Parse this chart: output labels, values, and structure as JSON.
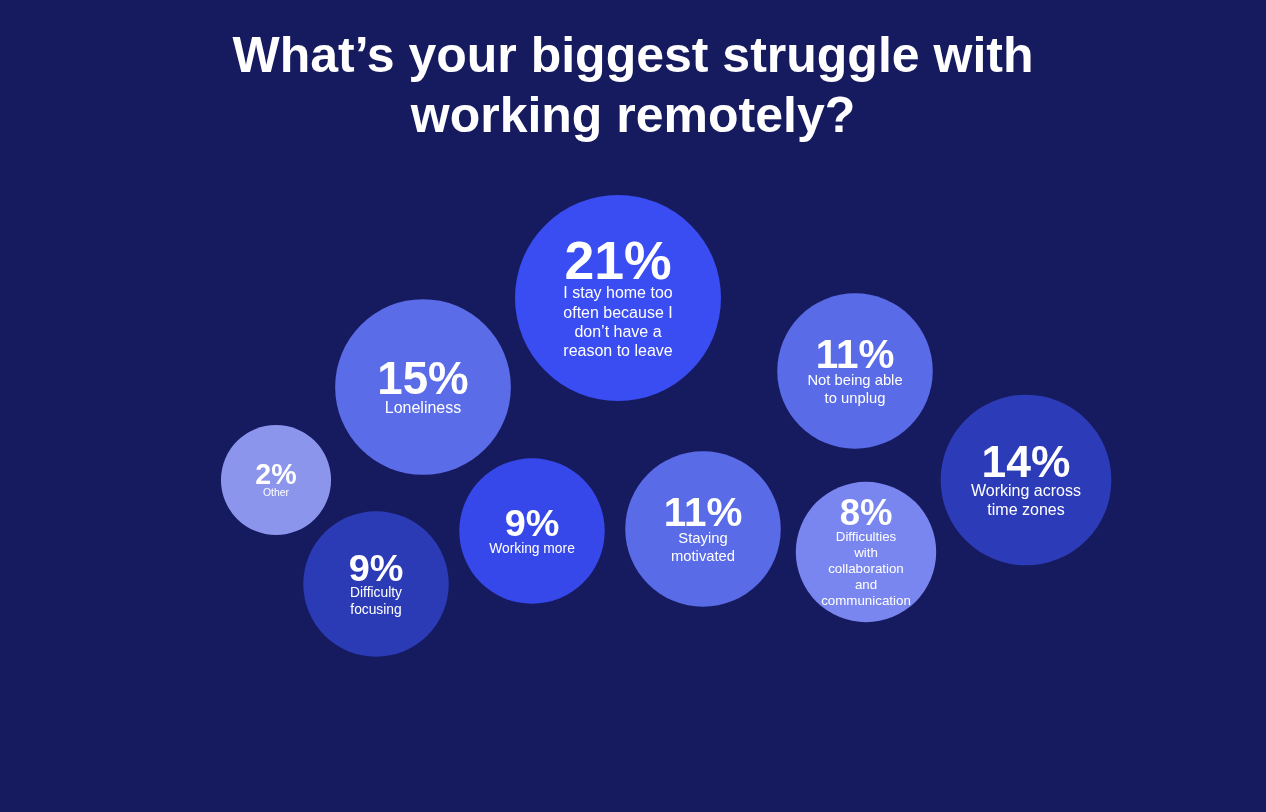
{
  "chart_data": {
    "type": "other",
    "title": "What’s your biggest struggle with working remotely?",
    "categories": [
      "I stay home too often because I don’t have a reason to leave",
      "Loneliness",
      "Other",
      "Difficulty focusing",
      "Working more",
      "Staying motivated",
      "Not being able to unplug",
      "Difficulties with collaboration and communication",
      "Working across time zones"
    ],
    "values": [
      21,
      15,
      2,
      9,
      9,
      11,
      11,
      8,
      14
    ],
    "value_labels": [
      "21%",
      "15%",
      "2%",
      "9%",
      "9%",
      "11%",
      "11%",
      "8%",
      "14%"
    ],
    "colors": [
      "#3a4df2",
      "#5b6ce9",
      "#8c95ec",
      "#2b3bb6",
      "#3748ea",
      "#5a6be8",
      "#5a6be8",
      "#7a86ef",
      "#2c3cb9"
    ]
  }
}
